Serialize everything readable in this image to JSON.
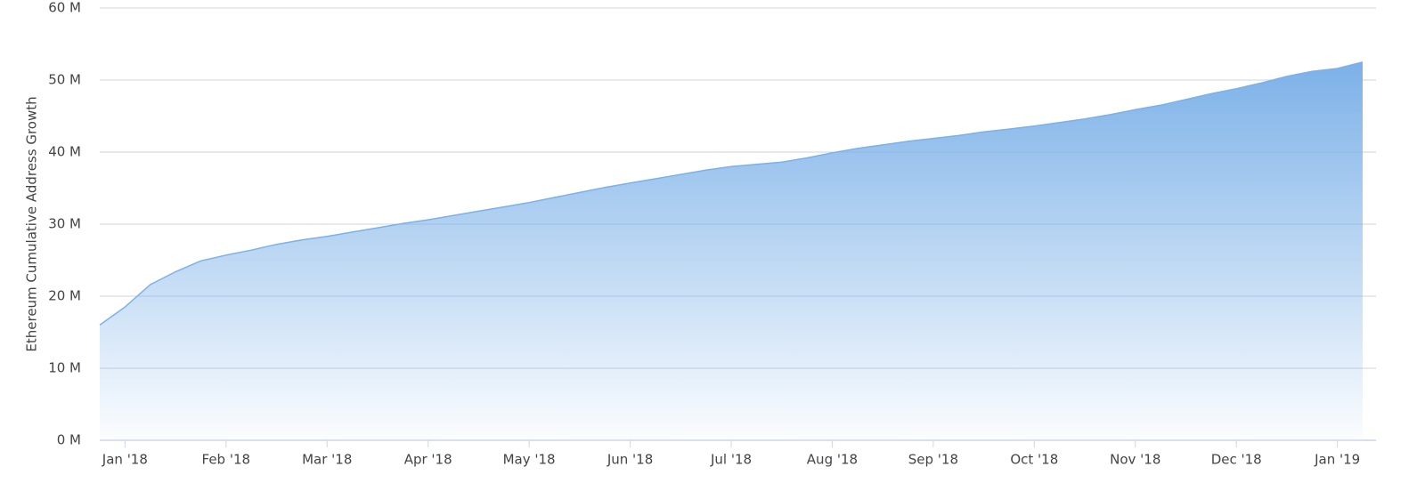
{
  "chart_data": {
    "type": "area",
    "y_label": "Ethereum Cumulative Address Growth",
    "categories": [
      null,
      "Jan '18",
      null,
      null,
      null,
      "Feb '18",
      null,
      null,
      null,
      "Mar '18",
      null,
      null,
      null,
      "Apr '18",
      null,
      null,
      null,
      "May '18",
      null,
      null,
      null,
      "Jun '18",
      null,
      null,
      null,
      "Jul '18",
      null,
      null,
      null,
      "Aug '18",
      null,
      null,
      null,
      "Sep '18",
      null,
      null,
      null,
      "Oct '18",
      null,
      null,
      null,
      "Nov '18",
      null,
      null,
      null,
      "Dec '18",
      null,
      null,
      null,
      "Jan '19",
      null
    ],
    "values": [
      16.0,
      18.5,
      21.6,
      23.4,
      24.9,
      25.7,
      26.4,
      27.2,
      27.8,
      28.3,
      28.9,
      29.5,
      30.1,
      30.6,
      31.2,
      31.8,
      32.4,
      33.0,
      33.7,
      34.4,
      35.1,
      35.7,
      36.3,
      36.9,
      37.5,
      38.0,
      38.3,
      38.6,
      39.2,
      39.9,
      40.5,
      41.0,
      41.5,
      41.9,
      42.3,
      42.8,
      43.2,
      43.6,
      44.1,
      44.6,
      45.2,
      45.9,
      46.5,
      47.3,
      48.1,
      48.8,
      49.6,
      50.5,
      51.2,
      51.6,
      52.5
    ],
    "color": "#7cb1e8",
    "ylim": [
      0,
      60
    ],
    "yticks": [
      {
        "value": 0,
        "label": "0 M"
      },
      {
        "value": 10,
        "label": "10 M"
      },
      {
        "value": 20,
        "label": "20 M"
      },
      {
        "value": 30,
        "label": "30 M"
      },
      {
        "value": 40,
        "label": "40 M"
      },
      {
        "value": 50,
        "label": "50 M"
      },
      {
        "value": 60,
        "label": "60 M"
      }
    ],
    "grid": true
  }
}
